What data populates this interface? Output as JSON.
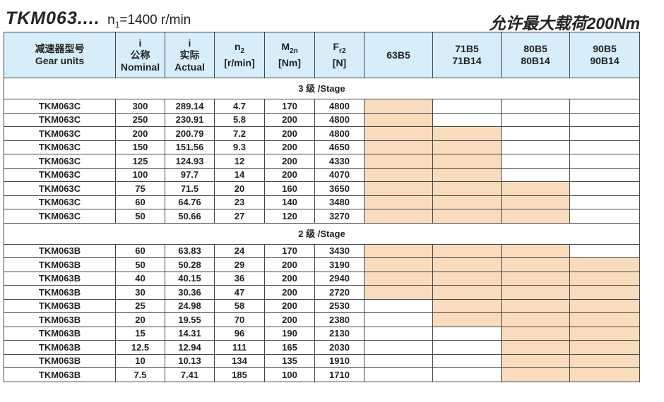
{
  "title": {
    "model": "TKM063....",
    "speed_prefix": "n",
    "speed_sub": "1",
    "speed_value": "=1400 r/min",
    "max_load": "允许最大载荷200Nm"
  },
  "header": {
    "gear_units_cn": "减速器型号",
    "gear_units_en": "Gear units",
    "i_nominal_sym": "i",
    "i_nominal_cn": "公称",
    "i_nominal_en": "Nominal",
    "i_actual_sym": "i",
    "i_actual_cn": "实际",
    "i_actual_en": "Actual",
    "n2": "n",
    "n2_sub": "2",
    "n2_unit": "[r/min]",
    "m2n": "M",
    "m2n_sub": "2n",
    "m2n_unit": "[Nm]",
    "fr2": "F",
    "fr2_sub": "r2",
    "fr2_unit": "[N]",
    "motor_1": "63B5",
    "motor_2a": "71B5",
    "motor_2b": "71B14",
    "motor_3a": "80B5",
    "motor_3b": "80B14",
    "motor_4a": "90B5",
    "motor_4b": "90B14"
  },
  "highlight_color": "#f8dcbd",
  "sections": [
    {
      "label": "3 级 /Stage",
      "rows": [
        {
          "unit": "TKM063C",
          "nominal": "300",
          "actual": "289.14",
          "n2": "4.7",
          "m2n": "170",
          "fr2": "4800",
          "compat": [
            1,
            0,
            0,
            0
          ]
        },
        {
          "unit": "TKM063C",
          "nominal": "250",
          "actual": "230.91",
          "n2": "5.8",
          "m2n": "200",
          "fr2": "4800",
          "compat": [
            1,
            0,
            0,
            0
          ]
        },
        {
          "unit": "TKM063C",
          "nominal": "200",
          "actual": "200.79",
          "n2": "7.2",
          "m2n": "200",
          "fr2": "4800",
          "compat": [
            1,
            1,
            0,
            0
          ]
        },
        {
          "unit": "TKM063C",
          "nominal": "150",
          "actual": "151.56",
          "n2": "9.3",
          "m2n": "200",
          "fr2": "4650",
          "compat": [
            1,
            1,
            0,
            0
          ]
        },
        {
          "unit": "TKM063C",
          "nominal": "125",
          "actual": "124.93",
          "n2": "12",
          "m2n": "200",
          "fr2": "4330",
          "compat": [
            1,
            1,
            0,
            0
          ]
        },
        {
          "unit": "TKM063C",
          "nominal": "100",
          "actual": "97.7",
          "n2": "14",
          "m2n": "200",
          "fr2": "4070",
          "compat": [
            1,
            1,
            0,
            0
          ]
        },
        {
          "unit": "TKM063C",
          "nominal": "75",
          "actual": "71.5",
          "n2": "20",
          "m2n": "160",
          "fr2": "3650",
          "compat": [
            1,
            1,
            1,
            0
          ]
        },
        {
          "unit": "TKM063C",
          "nominal": "60",
          "actual": "64.76",
          "n2": "23",
          "m2n": "140",
          "fr2": "3480",
          "compat": [
            1,
            1,
            1,
            0
          ]
        },
        {
          "unit": "TKM063C",
          "nominal": "50",
          "actual": "50.66",
          "n2": "27",
          "m2n": "120",
          "fr2": "3270",
          "compat": [
            1,
            1,
            1,
            0
          ]
        }
      ]
    },
    {
      "label": "2 级 /Stage",
      "rows": [
        {
          "unit": "TKM063B",
          "nominal": "60",
          "actual": "63.83",
          "n2": "24",
          "m2n": "170",
          "fr2": "3430",
          "compat": [
            1,
            1,
            1,
            0
          ]
        },
        {
          "unit": "TKM063B",
          "nominal": "50",
          "actual": "50.28",
          "n2": "29",
          "m2n": "200",
          "fr2": "3190",
          "compat": [
            1,
            1,
            1,
            1
          ]
        },
        {
          "unit": "TKM063B",
          "nominal": "40",
          "actual": "40.15",
          "n2": "36",
          "m2n": "200",
          "fr2": "2940",
          "compat": [
            1,
            1,
            1,
            1
          ]
        },
        {
          "unit": "TKM063B",
          "nominal": "30",
          "actual": "30.36",
          "n2": "47",
          "m2n": "200",
          "fr2": "2720",
          "compat": [
            1,
            1,
            1,
            1
          ]
        },
        {
          "unit": "TKM063B",
          "nominal": "25",
          "actual": "24.98",
          "n2": "58",
          "m2n": "200",
          "fr2": "2530",
          "compat": [
            0,
            1,
            1,
            1
          ]
        },
        {
          "unit": "TKM063B",
          "nominal": "20",
          "actual": "19.55",
          "n2": "70",
          "m2n": "200",
          "fr2": "2380",
          "compat": [
            0,
            1,
            1,
            1
          ]
        },
        {
          "unit": "TKM063B",
          "nominal": "15",
          "actual": "14.31",
          "n2": "96",
          "m2n": "190",
          "fr2": "2130",
          "compat": [
            0,
            0,
            1,
            1
          ]
        },
        {
          "unit": "TKM063B",
          "nominal": "12.5",
          "actual": "12.94",
          "n2": "111",
          "m2n": "165",
          "fr2": "2030",
          "compat": [
            0,
            0,
            1,
            1
          ]
        },
        {
          "unit": "TKM063B",
          "nominal": "10",
          "actual": "10.13",
          "n2": "134",
          "m2n": "135",
          "fr2": "1910",
          "compat": [
            0,
            0,
            1,
            1
          ]
        },
        {
          "unit": "TKM063B",
          "nominal": "7.5",
          "actual": "7.41",
          "n2": "185",
          "m2n": "100",
          "fr2": "1710",
          "compat": [
            0,
            0,
            1,
            1
          ]
        }
      ]
    }
  ]
}
